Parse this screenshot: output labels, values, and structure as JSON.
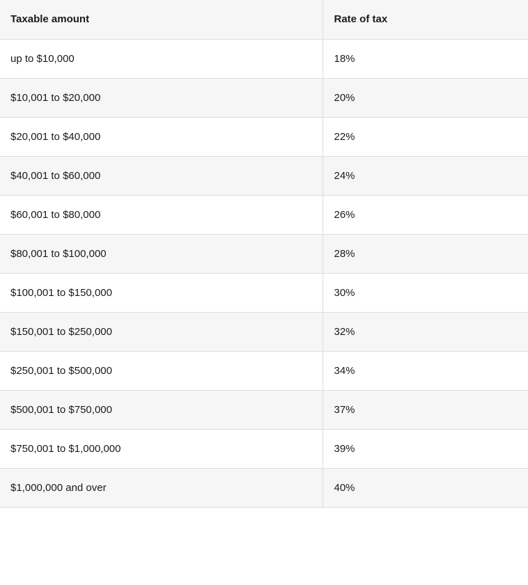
{
  "table": {
    "headers": {
      "amount": "Taxable amount",
      "rate": "Rate of tax"
    },
    "rows": [
      {
        "amount": "up to $10,000",
        "rate": "18%"
      },
      {
        "amount": "$10,001 to $20,000",
        "rate": "20%"
      },
      {
        "amount": "$20,001 to $40,000",
        "rate": "22%"
      },
      {
        "amount": "$40,001 to $60,000",
        "rate": "24%"
      },
      {
        "amount": "$60,001 to $80,000",
        "rate": "26%"
      },
      {
        "amount": "$80,001 to $100,000",
        "rate": "28%"
      },
      {
        "amount": "$100,001 to $150,000",
        "rate": "30%"
      },
      {
        "amount": "$150,001 to $250,000",
        "rate": "32%"
      },
      {
        "amount": "$250,001 to $500,000",
        "rate": "34%"
      },
      {
        "amount": "$500,001 to $750,000",
        "rate": "37%"
      },
      {
        "amount": "$750,001 to $1,000,000",
        "rate": "39%"
      },
      {
        "amount": "$1,000,000 and over",
        "rate": "40%"
      }
    ]
  },
  "colors": {
    "header_bg": "#f6f6f6",
    "stripe_bg": "#f6f6f6",
    "border": "#dcdcdc",
    "text": "#1a1a1a"
  }
}
